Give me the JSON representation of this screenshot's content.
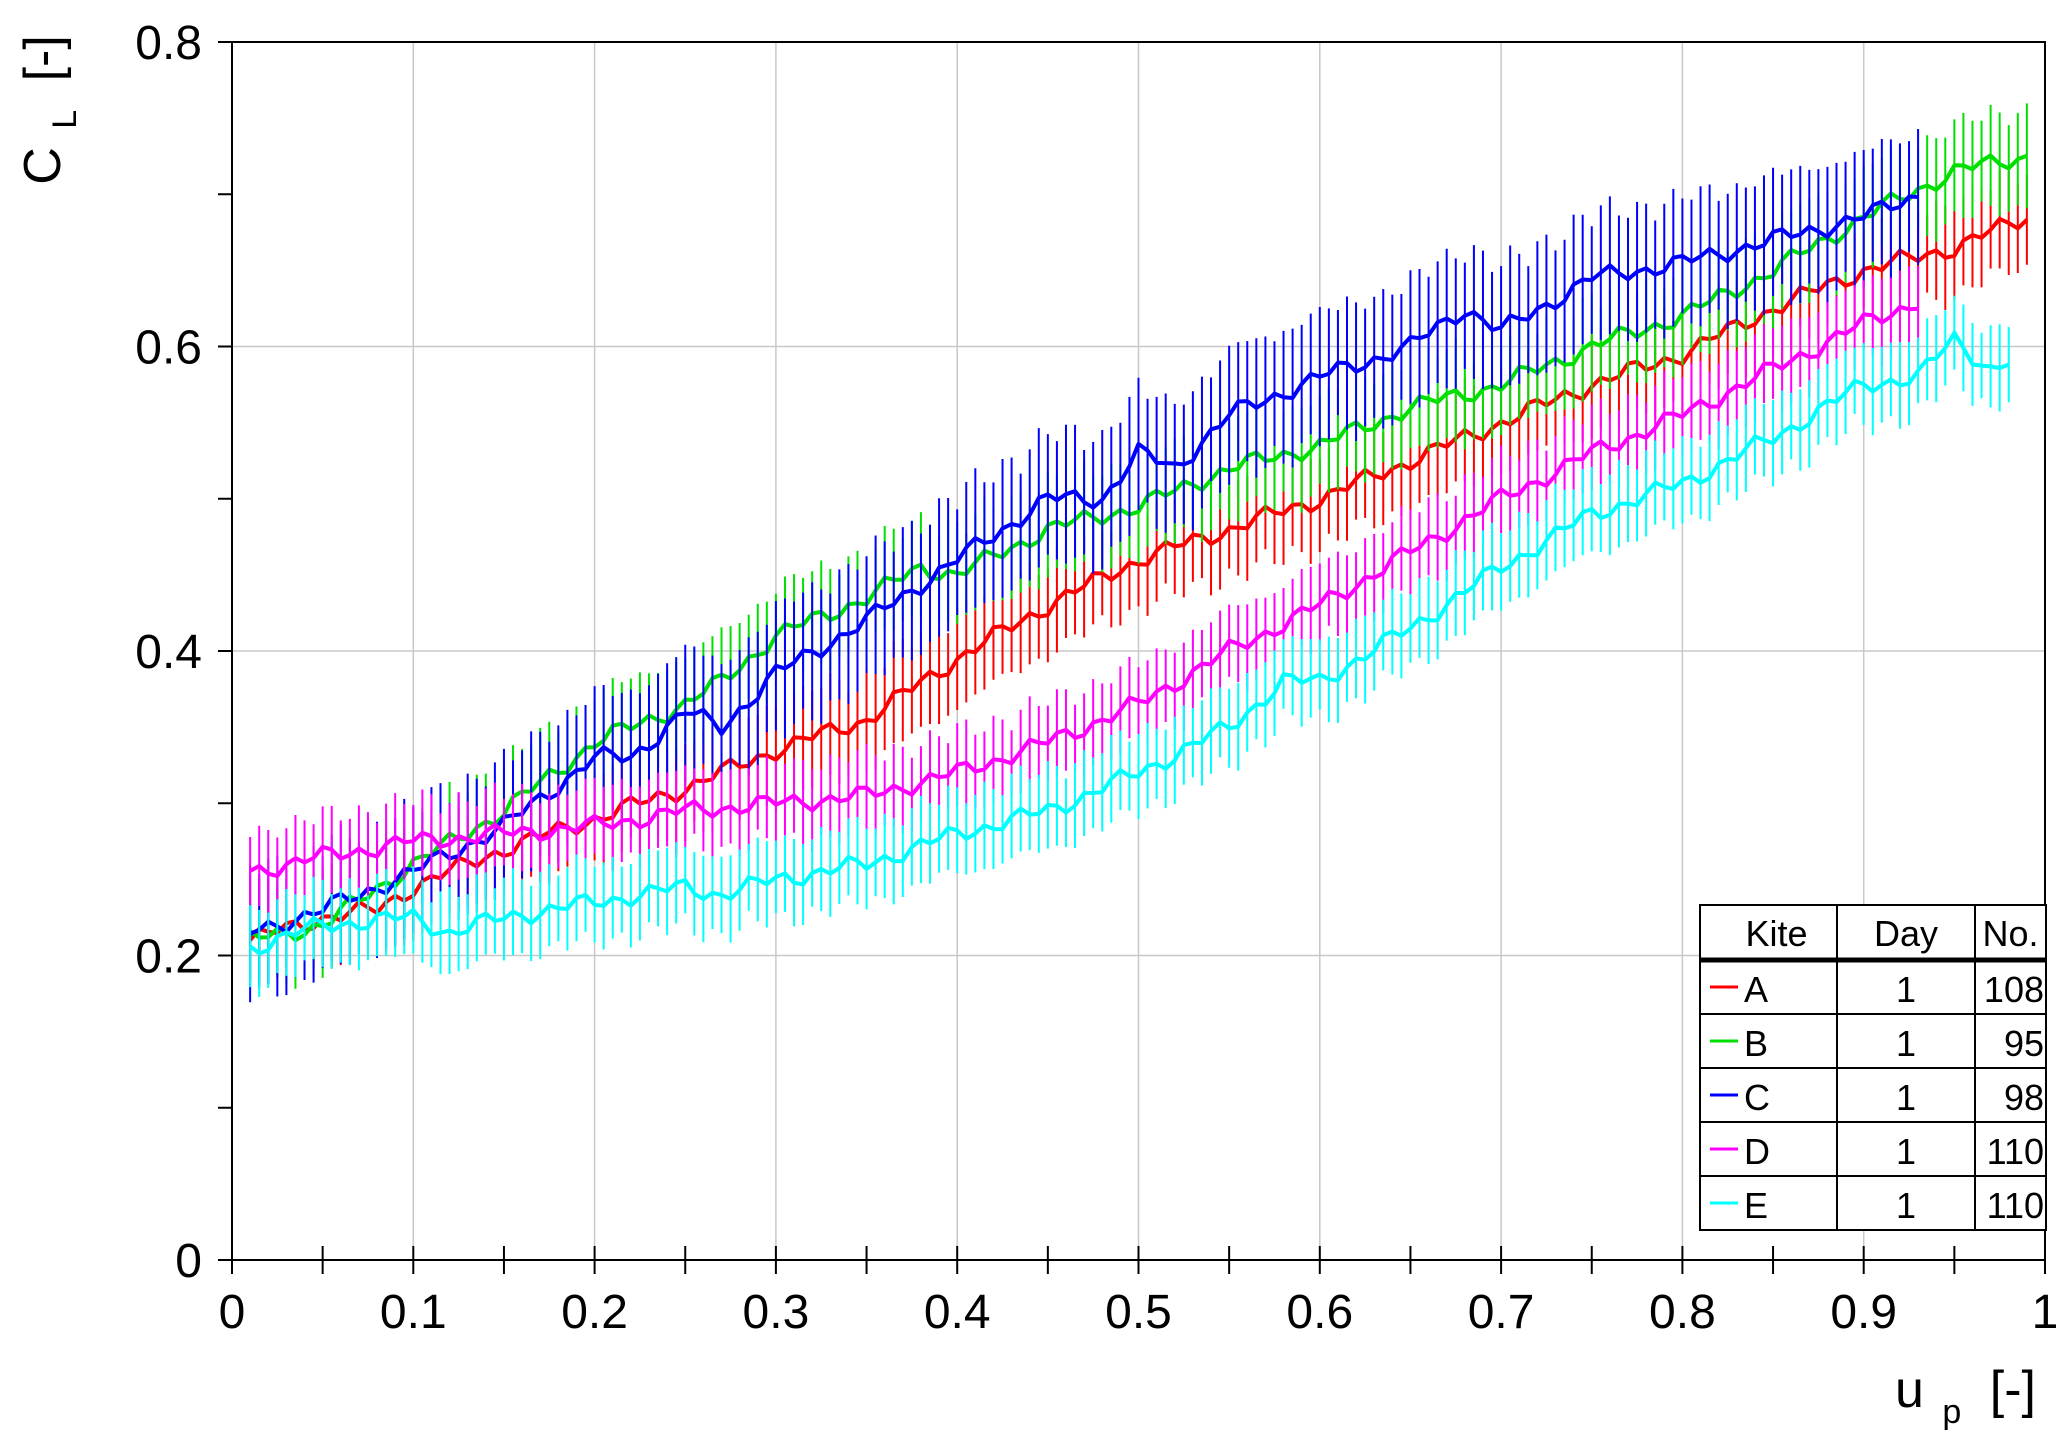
{
  "chart_data": {
    "type": "line",
    "title": "",
    "xlabel": {
      "main": "u",
      "sub": "p",
      "unit": "[-]"
    },
    "ylabel": {
      "main": "C",
      "sub": "L",
      "unit": "[-]"
    },
    "xlim": [
      0,
      1
    ],
    "ylim": [
      0,
      0.8
    ],
    "xticks": [
      0,
      0.1,
      0.2,
      0.3,
      0.4,
      0.5,
      0.6,
      0.7,
      0.8,
      0.9,
      1
    ],
    "xtick_labels": [
      "0",
      "0.1",
      "0.2",
      "0.3",
      "0.4",
      "0.5",
      "0.6",
      "0.7",
      "0.8",
      "0.9",
      "1"
    ],
    "yticks": [
      0,
      0.2,
      0.4,
      0.6,
      0.8
    ],
    "ytick_labels": [
      "0",
      "0.2",
      "0.4",
      "0.6",
      "0.8"
    ],
    "grid": true,
    "error_bars": true,
    "legend": {
      "placement": "bottom-right",
      "headers": [
        "Kite",
        "Day",
        "No."
      ],
      "rows": [
        {
          "kite": "A",
          "day": "1",
          "no": "108",
          "color": "#ff0000"
        },
        {
          "kite": "B",
          "day": "1",
          "no": "95",
          "color": "#00e000"
        },
        {
          "kite": "C",
          "day": "1",
          "no": "98",
          "color": "#0000ff"
        },
        {
          "kite": "D",
          "day": "1",
          "no": "110",
          "color": "#ff00ff"
        },
        {
          "kite": "E",
          "day": "1",
          "no": "110",
          "color": "#00ffff"
        }
      ]
    },
    "series": [
      {
        "name": "A",
        "color": "#ff0000",
        "error": 0.03,
        "x": [
          0.01,
          0.05,
          0.08,
          0.1,
          0.12,
          0.15,
          0.2,
          0.25,
          0.3,
          0.35,
          0.4,
          0.45,
          0.5,
          0.55,
          0.6,
          0.65,
          0.7,
          0.75,
          0.8,
          0.85,
          0.9,
          0.95,
          0.99
        ],
        "y": [
          0.21,
          0.225,
          0.23,
          0.245,
          0.255,
          0.27,
          0.29,
          0.31,
          0.335,
          0.355,
          0.395,
          0.43,
          0.46,
          0.48,
          0.5,
          0.525,
          0.55,
          0.575,
          0.595,
          0.625,
          0.65,
          0.665,
          0.685
        ]
      },
      {
        "name": "B",
        "color": "#00e000",
        "error": 0.03,
        "x": [
          0.01,
          0.05,
          0.1,
          0.15,
          0.2,
          0.25,
          0.27,
          0.3,
          0.35,
          0.38,
          0.4,
          0.45,
          0.5,
          0.55,
          0.6,
          0.65,
          0.7,
          0.75,
          0.8,
          0.85,
          0.9,
          0.95,
          0.99
        ],
        "y": [
          0.21,
          0.22,
          0.26,
          0.295,
          0.34,
          0.365,
          0.38,
          0.41,
          0.435,
          0.455,
          0.45,
          0.48,
          0.495,
          0.52,
          0.535,
          0.56,
          0.575,
          0.6,
          0.62,
          0.65,
          0.685,
          0.715,
          0.725
        ]
      },
      {
        "name": "C",
        "color": "#0000ff",
        "error": 0.04,
        "x": [
          0.01,
          0.05,
          0.1,
          0.15,
          0.2,
          0.22,
          0.25,
          0.27,
          0.3,
          0.35,
          0.4,
          0.45,
          0.48,
          0.5,
          0.52,
          0.55,
          0.6,
          0.65,
          0.68,
          0.7,
          0.75,
          0.8,
          0.85,
          0.9,
          0.93
        ],
        "y": [
          0.215,
          0.23,
          0.255,
          0.285,
          0.33,
          0.33,
          0.36,
          0.35,
          0.385,
          0.42,
          0.46,
          0.5,
          0.5,
          0.53,
          0.52,
          0.555,
          0.58,
          0.6,
          0.625,
          0.61,
          0.645,
          0.655,
          0.67,
          0.685,
          0.7
        ]
      },
      {
        "name": "D",
        "color": "#ff00ff",
        "error": 0.025,
        "x": [
          0.01,
          0.05,
          0.1,
          0.15,
          0.2,
          0.25,
          0.3,
          0.35,
          0.4,
          0.45,
          0.5,
          0.55,
          0.6,
          0.65,
          0.7,
          0.75,
          0.8,
          0.85,
          0.9,
          0.93
        ],
        "y": [
          0.255,
          0.265,
          0.275,
          0.28,
          0.285,
          0.295,
          0.3,
          0.305,
          0.32,
          0.34,
          0.365,
          0.4,
          0.43,
          0.465,
          0.5,
          0.53,
          0.555,
          0.585,
          0.615,
          0.63
        ]
      },
      {
        "name": "E",
        "color": "#00ffff",
        "error": 0.025,
        "x": [
          0.01,
          0.05,
          0.1,
          0.12,
          0.15,
          0.2,
          0.25,
          0.27,
          0.3,
          0.35,
          0.4,
          0.45,
          0.5,
          0.55,
          0.58,
          0.6,
          0.65,
          0.7,
          0.75,
          0.8,
          0.85,
          0.9,
          0.93,
          0.95,
          0.97,
          0.98
        ],
        "y": [
          0.205,
          0.22,
          0.225,
          0.215,
          0.225,
          0.235,
          0.245,
          0.24,
          0.25,
          0.26,
          0.28,
          0.295,
          0.32,
          0.35,
          0.38,
          0.38,
          0.415,
          0.455,
          0.49,
          0.51,
          0.54,
          0.575,
          0.58,
          0.605,
          0.585,
          0.59
        ]
      }
    ]
  }
}
